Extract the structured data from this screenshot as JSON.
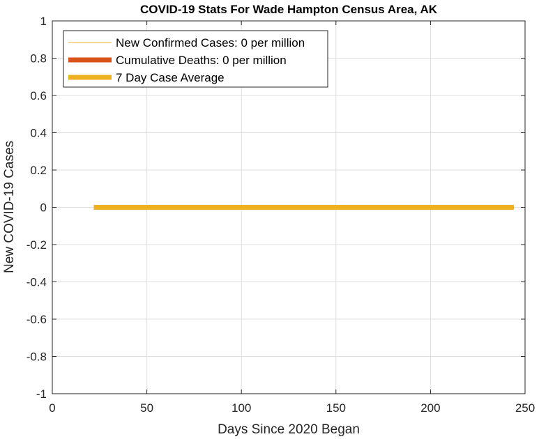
{
  "chart_data": {
    "type": "line",
    "title": "COVID-19 Stats For Wade Hampton Census Area, AK",
    "xlabel": "Days Since 2020 Began",
    "ylabel": "New COVID-19 Cases",
    "xlim": [
      0,
      250
    ],
    "ylim": [
      -1,
      1
    ],
    "xticks": [
      0,
      50,
      100,
      150,
      200,
      250
    ],
    "yticks": [
      1,
      0.8,
      0.6,
      0.4,
      0.2,
      0,
      -0.2,
      -0.4,
      -0.6,
      -0.8,
      -1
    ],
    "grid": true,
    "legend_position": "top-left",
    "series": [
      {
        "name": "New Confirmed Cases: 0 per million",
        "color": "#EDB120",
        "style": "thin",
        "x": [
          22,
          244
        ],
        "y": [
          0,
          0
        ]
      },
      {
        "name": "Cumulative Deaths: 0 per million",
        "color": "#D95319",
        "style": "thick",
        "x": [
          22,
          244
        ],
        "y": [
          0,
          0
        ]
      },
      {
        "name": "7 Day Case Average",
        "color": "#EDB120",
        "style": "thick",
        "x": [
          22,
          244
        ],
        "y": [
          0,
          0
        ]
      }
    ]
  }
}
